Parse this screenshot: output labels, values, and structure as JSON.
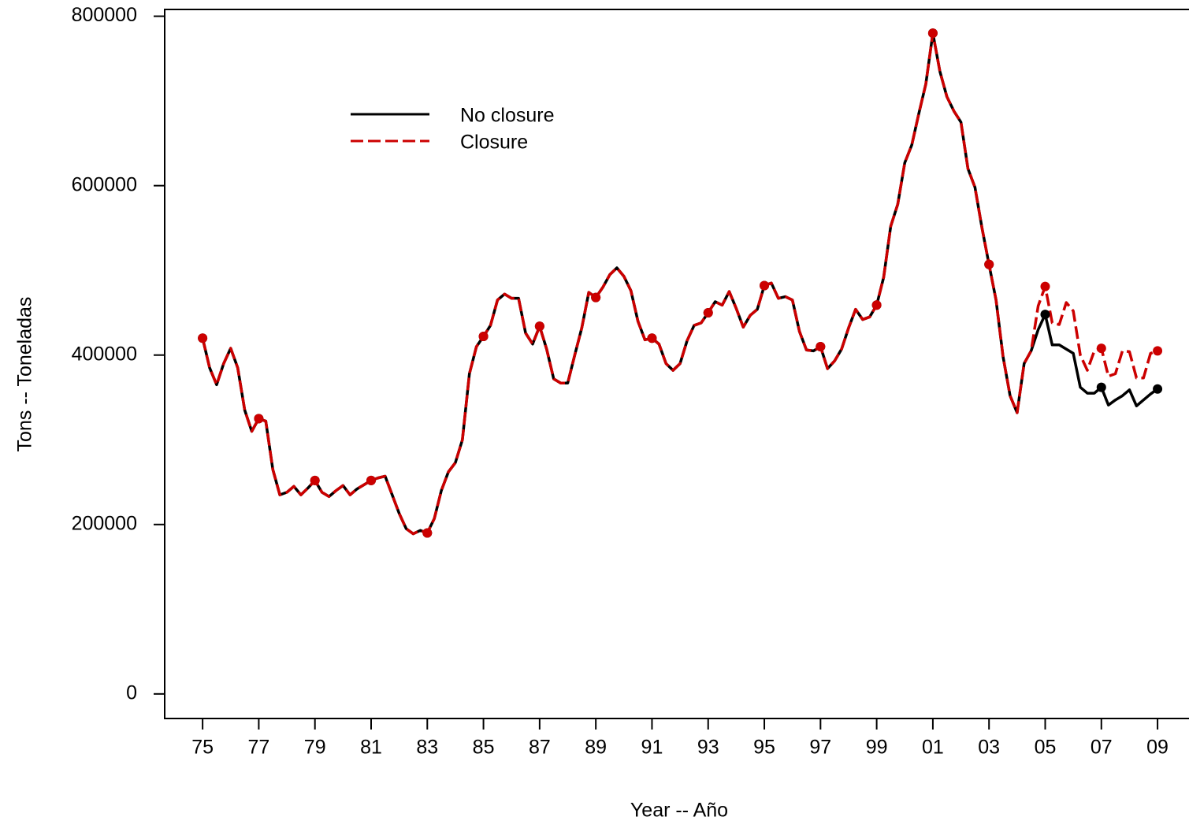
{
  "chart_data": {
    "type": "line",
    "xlabel": "Year -- Año",
    "ylabel": "Tons -- Toneladas",
    "x": [
      1975,
      1975.25,
      1975.5,
      1975.75,
      1976,
      1976.25,
      1976.5,
      1976.75,
      1977,
      1977.25,
      1977.5,
      1977.75,
      1978,
      1978.25,
      1978.5,
      1978.75,
      1979,
      1979.25,
      1979.5,
      1979.75,
      1980,
      1980.25,
      1980.5,
      1980.75,
      1981,
      1981.25,
      1981.5,
      1981.75,
      1982,
      1982.25,
      1982.5,
      1982.75,
      1983,
      1983.25,
      1983.5,
      1983.75,
      1984,
      1984.25,
      1984.5,
      1984.75,
      1985,
      1985.25,
      1985.5,
      1985.75,
      1986,
      1986.25,
      1986.5,
      1986.75,
      1987,
      1987.25,
      1987.5,
      1987.75,
      1988,
      1988.25,
      1988.5,
      1988.75,
      1989,
      1989.25,
      1989.5,
      1989.75,
      1990,
      1990.25,
      1990.5,
      1990.75,
      1991,
      1991.25,
      1991.5,
      1991.75,
      1992,
      1992.25,
      1992.5,
      1992.75,
      1993,
      1993.25,
      1993.5,
      1993.75,
      1994,
      1994.25,
      1994.5,
      1994.75,
      1995,
      1995.25,
      1995.5,
      1995.75,
      1996,
      1996.25,
      1996.5,
      1996.75,
      1997,
      1997.25,
      1997.5,
      1997.75,
      1998,
      1998.25,
      1998.5,
      1998.75,
      1999,
      1999.25,
      1999.5,
      1999.75,
      2000,
      2000.25,
      2000.5,
      2000.75,
      2001,
      2001.25,
      2001.5,
      2001.75,
      2002,
      2002.25,
      2002.5,
      2002.75,
      2003,
      2003.25,
      2003.5,
      2003.75,
      2004,
      2004.25,
      2004.5,
      2004.75,
      2005,
      2005.25,
      2005.5,
      2005.75,
      2006,
      2006.25,
      2006.5,
      2006.75,
      2007,
      2007.25,
      2007.5,
      2007.75,
      2008,
      2008.25,
      2008.5,
      2008.75,
      2009
    ],
    "series": [
      {
        "name": "No closure",
        "color": "#000000",
        "dash": false,
        "values": [
          420000,
          385000,
          365000,
          390000,
          408000,
          385000,
          335000,
          310000,
          325000,
          322000,
          265000,
          235000,
          238000,
          245000,
          235000,
          243000,
          252000,
          238000,
          233000,
          240000,
          246000,
          235000,
          242000,
          247000,
          252000,
          255000,
          257000,
          235000,
          213000,
          195000,
          189000,
          193000,
          190000,
          207000,
          240000,
          262000,
          273000,
          300000,
          378000,
          410000,
          422000,
          435000,
          465000,
          472000,
          467000,
          467000,
          426000,
          413000,
          434000,
          407000,
          372000,
          367000,
          367000,
          400000,
          432000,
          474000,
          468000,
          480000,
          495000,
          503000,
          493000,
          476000,
          440000,
          418000,
          420000,
          413000,
          390000,
          382000,
          390000,
          417000,
          435000,
          438000,
          450000,
          463000,
          459000,
          475000,
          455000,
          433000,
          447000,
          454000,
          482000,
          485000,
          467000,
          469000,
          465000,
          428000,
          406000,
          405000,
          410000,
          384000,
          393000,
          407000,
          432000,
          454000,
          442000,
          445000,
          459000,
          492000,
          552000,
          578000,
          627000,
          648000,
          685000,
          720000,
          780000,
          735000,
          705000,
          688000,
          675000,
          620000,
          598000,
          550000,
          507000,
          465000,
          398000,
          352000,
          332000,
          390000,
          405000,
          430000,
          448000,
          412000,
          412000,
          407000,
          402000,
          362000,
          355000,
          355000,
          362000,
          341000,
          347000,
          352000,
          359000,
          340000,
          347000,
          354000,
          360000
        ]
      },
      {
        "name": "Closure",
        "color": "#cc0000",
        "dash": true,
        "values": [
          420000,
          385000,
          365000,
          390000,
          408000,
          385000,
          335000,
          310000,
          325000,
          322000,
          265000,
          235000,
          238000,
          245000,
          235000,
          243000,
          252000,
          238000,
          233000,
          240000,
          246000,
          235000,
          242000,
          247000,
          252000,
          255000,
          257000,
          235000,
          213000,
          195000,
          189000,
          193000,
          190000,
          207000,
          240000,
          262000,
          273000,
          300000,
          378000,
          410000,
          422000,
          435000,
          465000,
          472000,
          467000,
          467000,
          426000,
          413000,
          434000,
          407000,
          372000,
          367000,
          367000,
          400000,
          432000,
          474000,
          468000,
          480000,
          495000,
          503000,
          493000,
          476000,
          440000,
          418000,
          420000,
          413000,
          390000,
          382000,
          390000,
          417000,
          435000,
          438000,
          450000,
          463000,
          459000,
          475000,
          455000,
          433000,
          447000,
          454000,
          482000,
          485000,
          467000,
          469000,
          465000,
          428000,
          406000,
          405000,
          410000,
          384000,
          393000,
          407000,
          432000,
          454000,
          442000,
          445000,
          459000,
          492000,
          552000,
          578000,
          627000,
          648000,
          685000,
          720000,
          780000,
          735000,
          705000,
          688000,
          675000,
          620000,
          598000,
          550000,
          507000,
          465000,
          398000,
          352000,
          332000,
          390000,
          405000,
          458000,
          481000,
          438000,
          436000,
          462000,
          452000,
          400000,
          382000,
          405000,
          408000,
          375000,
          378000,
          405000,
          404000,
          373000,
          373000,
          402000,
          405000
        ]
      }
    ],
    "xlim": [
      1973.65,
      2010.12
    ],
    "xticks": [
      {
        "value": 1975,
        "label": "75"
      },
      {
        "value": 1977,
        "label": "77"
      },
      {
        "value": 1979,
        "label": "79"
      },
      {
        "value": 1981,
        "label": "81"
      },
      {
        "value": 1983,
        "label": "83"
      },
      {
        "value": 1985,
        "label": "85"
      },
      {
        "value": 1987,
        "label": "87"
      },
      {
        "value": 1989,
        "label": "89"
      },
      {
        "value": 1991,
        "label": "91"
      },
      {
        "value": 1993,
        "label": "93"
      },
      {
        "value": 1995,
        "label": "95"
      },
      {
        "value": 1997,
        "label": "97"
      },
      {
        "value": 1999,
        "label": "99"
      },
      {
        "value": 2001,
        "label": "01"
      },
      {
        "value": 2003,
        "label": "03"
      },
      {
        "value": 2005,
        "label": "05"
      },
      {
        "value": 2007,
        "label": "07"
      },
      {
        "value": 2009,
        "label": "09"
      }
    ],
    "ylim": [
      -29000,
      808000
    ],
    "yticks": [
      0,
      200000,
      400000,
      600000,
      800000
    ],
    "grid": false
  }
}
